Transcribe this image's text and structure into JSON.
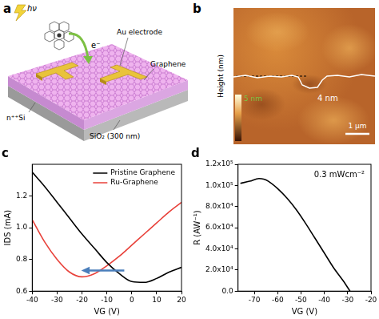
{
  "schematic": {
    "label": "a",
    "light": "hν",
    "electron": "e⁻",
    "electrode": "Au electrode",
    "graphene": "Graphene",
    "oxide": "SiO₂ (300 nm)",
    "substrate": "n⁺⁺Si"
  },
  "afm": {
    "label": "b",
    "axis_label": "Height (nm)",
    "step_label": "4 nm",
    "colorbar_label": "5 nm",
    "scale_bar": "1 μm"
  },
  "chart_data": [
    {
      "type": "line",
      "title": "c",
      "x_label": "VG (V)",
      "y_label": "IDS (mA)",
      "x": [
        -40,
        -35,
        -30,
        -25,
        -20,
        -15,
        -10,
        -5,
        0,
        5,
        10,
        15,
        20
      ],
      "series": [
        {
          "name": "Pristine Graphene",
          "color": "#000000",
          "values": [
            1.35,
            1.26,
            1.16,
            1.06,
            0.96,
            0.87,
            0.78,
            0.71,
            0.66,
            0.655,
            0.68,
            0.72,
            0.75
          ]
        },
        {
          "name": "Ru-Graphene",
          "color": "#e8413a",
          "values": [
            1.05,
            0.91,
            0.8,
            0.72,
            0.69,
            0.71,
            0.76,
            0.82,
            0.89,
            0.96,
            1.03,
            1.1,
            1.16
          ]
        }
      ],
      "xlim": [
        -40,
        20
      ],
      "xticks": [
        -40,
        -30,
        -20,
        -10,
        0,
        10,
        20
      ],
      "ylim": [
        0.6,
        1.4
      ],
      "yticks": [
        0.6,
        0.8,
        {
          "value": 1,
          "label": "1.0"
        },
        1.2
      ],
      "legend": "upper right",
      "grid": false,
      "annotations": [
        {
          "type": "arrow",
          "color": "#4a7ebb",
          "x": [
            -3,
            -19
          ],
          "y": [
            0.73,
            0.73
          ]
        }
      ]
    },
    {
      "type": "line",
      "title": "d",
      "x_label": "VG (V)",
      "y_label": "R (AW⁻¹)",
      "x": [
        -76,
        -72,
        -68,
        -66,
        -64,
        -60,
        -56,
        -52,
        -48,
        -44,
        -40,
        -36,
        -32,
        -29
      ],
      "series": [
        {
          "color": "#000000",
          "values": [
            102000,
            104000,
            106500,
            106000,
            104000,
            97000,
            88000,
            77000,
            64000,
            50000,
            36000,
            22000,
            10000,
            0
          ]
        }
      ],
      "xlim": [
        -77,
        -20
      ],
      "xticks": [
        -70,
        -60,
        -50,
        -40,
        -30,
        -20
      ],
      "ylim": [
        0,
        120000
      ],
      "yticks": [
        {
          "value": 0,
          "label": "0.0"
        },
        {
          "value": 20000,
          "label": "2.0x10⁴"
        },
        {
          "value": 40000,
          "label": "4.0x10⁴"
        },
        {
          "value": 60000,
          "label": "6.0x10⁴"
        },
        {
          "value": 80000,
          "label": "8.0x10⁴"
        },
        {
          "value": 100000,
          "label": "1.0x10⁵"
        },
        {
          "value": 120000,
          "label": "1.2x10⁵"
        }
      ],
      "grid": false,
      "annotations": [
        {
          "type": "text",
          "text": "0.3 mWcm⁻²"
        }
      ]
    }
  ]
}
